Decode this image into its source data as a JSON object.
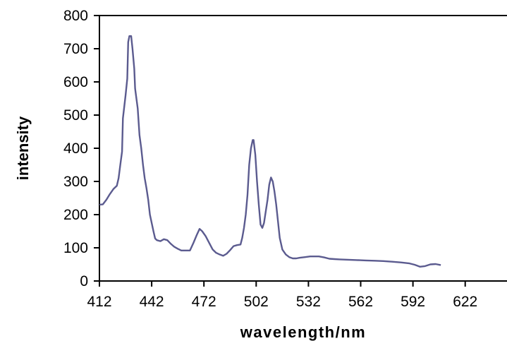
{
  "chart_data": {
    "type": "line",
    "title": "",
    "xlabel": "wavelength/nm",
    "ylabel": "intensity",
    "xlim": [
      412,
      646
    ],
    "ylim": [
      0,
      800
    ],
    "x_ticks": [
      412,
      442,
      472,
      502,
      532,
      562,
      592,
      622
    ],
    "y_ticks": [
      0,
      100,
      200,
      300,
      400,
      500,
      600,
      700,
      800
    ],
    "grid": false,
    "legend": "none",
    "line_color": "#5b5b8f",
    "series": [
      {
        "points": [
          [
            412,
            230
          ],
          [
            414,
            231
          ],
          [
            416,
            245
          ],
          [
            418,
            262
          ],
          [
            420,
            277
          ],
          [
            422,
            287
          ],
          [
            423,
            310
          ],
          [
            424,
            350
          ],
          [
            425,
            390
          ],
          [
            425.5,
            490
          ],
          [
            427,
            560
          ],
          [
            428,
            610
          ],
          [
            428.5,
            720
          ],
          [
            429.2,
            738
          ],
          [
            430.2,
            738
          ],
          [
            431,
            700
          ],
          [
            432,
            640
          ],
          [
            432.5,
            580
          ],
          [
            434,
            520
          ],
          [
            435,
            440
          ],
          [
            436,
            400
          ],
          [
            437,
            350
          ],
          [
            438,
            310
          ],
          [
            439,
            280
          ],
          [
            440,
            245
          ],
          [
            441,
            200
          ],
          [
            442,
            175
          ],
          [
            443,
            150
          ],
          [
            444,
            128
          ],
          [
            445,
            123
          ],
          [
            447,
            120
          ],
          [
            449,
            126
          ],
          [
            451,
            123
          ],
          [
            453,
            112
          ],
          [
            455,
            103
          ],
          [
            457,
            97
          ],
          [
            459,
            92
          ],
          [
            461,
            92
          ],
          [
            464,
            92
          ],
          [
            466,
            115
          ],
          [
            468,
            140
          ],
          [
            469.5,
            157
          ],
          [
            471,
            150
          ],
          [
            473,
            135
          ],
          [
            475,
            115
          ],
          [
            477,
            95
          ],
          [
            479,
            85
          ],
          [
            481,
            80
          ],
          [
            483,
            76
          ],
          [
            485,
            82
          ],
          [
            487,
            93
          ],
          [
            489,
            105
          ],
          [
            491,
            108
          ],
          [
            493,
            110
          ],
          [
            494,
            130
          ],
          [
            495,
            160
          ],
          [
            496,
            200
          ],
          [
            497,
            260
          ],
          [
            498,
            350
          ],
          [
            499,
            400
          ],
          [
            500,
            425
          ],
          [
            500.5,
            425
          ],
          [
            501.5,
            380
          ],
          [
            502.5,
            300
          ],
          [
            503.5,
            230
          ],
          [
            504.5,
            170
          ],
          [
            505.5,
            160
          ],
          [
            506.5,
            175
          ],
          [
            507.5,
            210
          ],
          [
            508.5,
            245
          ],
          [
            509.5,
            290
          ],
          [
            510.5,
            312
          ],
          [
            511.5,
            300
          ],
          [
            512.5,
            270
          ],
          [
            513.5,
            230
          ],
          [
            514.5,
            180
          ],
          [
            515.5,
            130
          ],
          [
            517,
            95
          ],
          [
            519,
            80
          ],
          [
            521,
            72
          ],
          [
            523,
            68
          ],
          [
            525,
            68
          ],
          [
            527,
            70
          ],
          [
            530,
            72
          ],
          [
            533,
            74
          ],
          [
            538,
            74
          ],
          [
            541,
            71
          ],
          [
            544,
            67
          ],
          [
            547,
            66
          ],
          [
            550,
            65
          ],
          [
            555,
            64
          ],
          [
            560,
            63
          ],
          [
            565,
            62
          ],
          [
            570,
            61
          ],
          [
            575,
            60
          ],
          [
            580,
            58
          ],
          [
            585,
            56
          ],
          [
            590,
            53
          ],
          [
            593,
            49
          ],
          [
            596,
            43
          ],
          [
            599,
            45
          ],
          [
            602,
            50
          ],
          [
            605,
            51
          ],
          [
            608,
            48
          ]
        ]
      }
    ]
  }
}
